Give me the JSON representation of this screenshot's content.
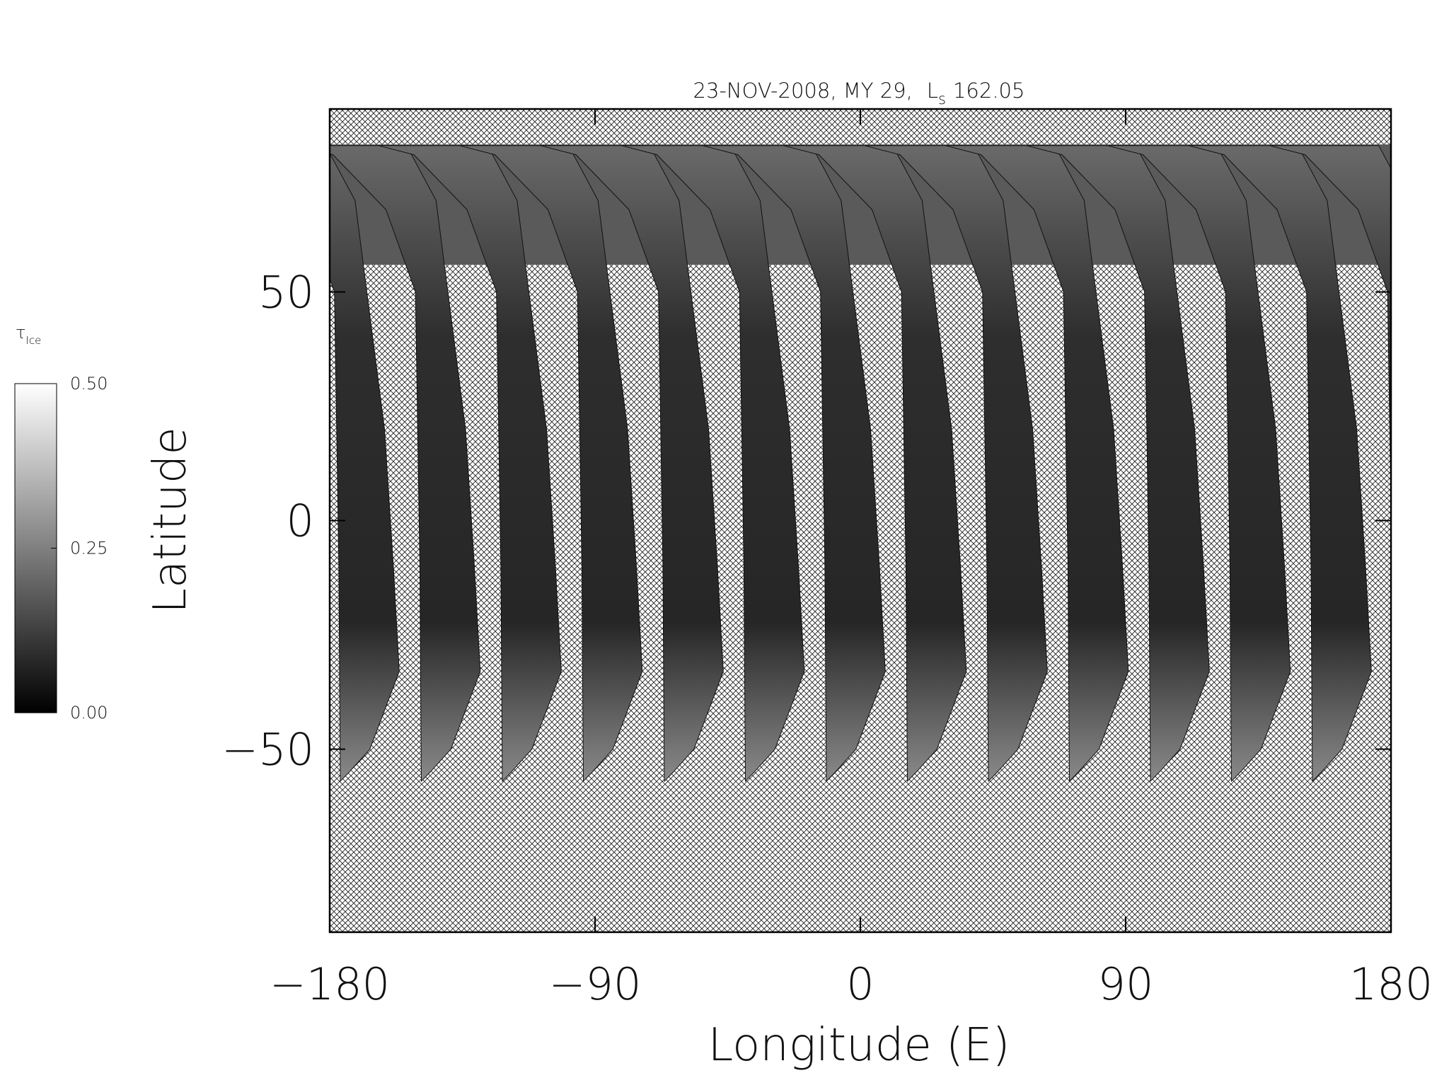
{
  "chart_data": {
    "type": "map",
    "title": "23-NOV-2008, MY 29,",
    "title_symbol": "L",
    "title_subscript": "s",
    "title_value": "162.05",
    "x_label": "Longitude (E)",
    "y_label": "Latitude",
    "xlim": [
      -180,
      180
    ],
    "ylim": [
      -90,
      90
    ],
    "xticks": [
      {
        "value": -180,
        "label": "−180"
      },
      {
        "value": -90,
        "label": "−90"
      },
      0,
      90,
      180
    ],
    "yticks": [
      {
        "value": -50,
        "label": "−50"
      },
      0,
      50
    ],
    "colorbar": {
      "label_symbol": "τ",
      "label_subscript": "Ice",
      "lim": [
        0,
        0.5
      ],
      "ticks": [
        {
          "value": 0,
          "label": "0.00"
        },
        {
          "value": 0.25,
          "label": "0.25"
        },
        {
          "value": 0.5,
          "label": "0.50"
        }
      ]
    }
  }
}
